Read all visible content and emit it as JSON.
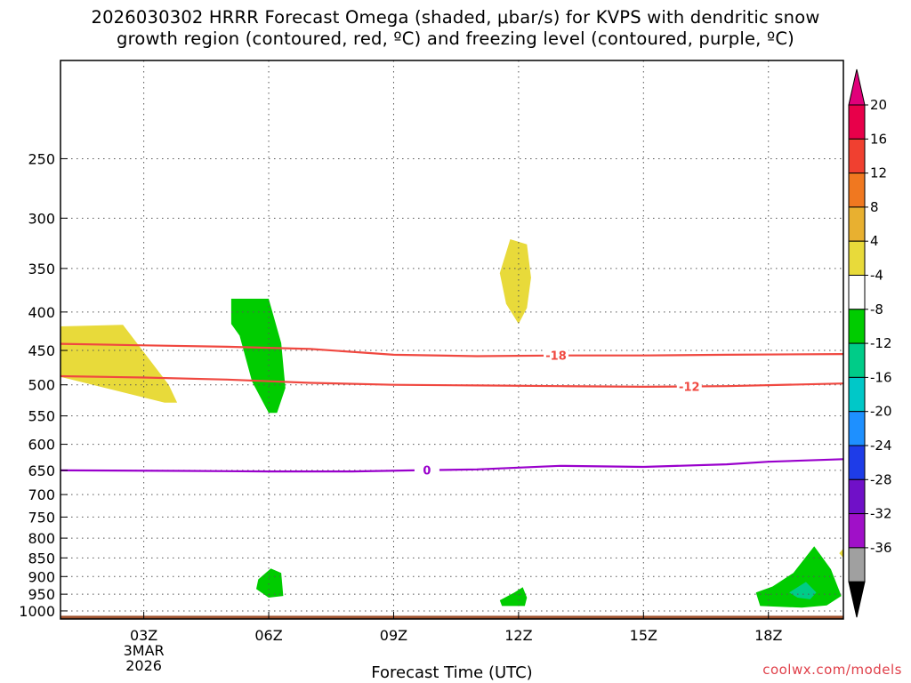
{
  "title_line1": "2026030302 HRRR Forecast Omega (shaded, μbar/s) for KVPS with dendritic snow",
  "title_line2": "growth region (contoured, red, ºC) and freezing level (contoured, purple, ºC)",
  "credit": "coolwx.com/models",
  "chart_data": {
    "type": "time-height cross-section",
    "xlabel": "Forecast Time (UTC)",
    "x_range_hours": [
      1.0,
      19.8
    ],
    "x_ticks": [
      {
        "hour": 3,
        "label": "03Z",
        "sub1": "3MAR",
        "sub2": "2026"
      },
      {
        "hour": 6,
        "label": "06Z"
      },
      {
        "hour": 9,
        "label": "09Z"
      },
      {
        "hour": 12,
        "label": "12Z"
      },
      {
        "hour": 15,
        "label": "15Z"
      },
      {
        "hour": 18,
        "label": "18Z"
      }
    ],
    "y_scale": "log pressure",
    "y_range_hpa": [
      1025,
      185
    ],
    "y_ticks": [
      250,
      300,
      350,
      400,
      450,
      500,
      550,
      600,
      650,
      700,
      750,
      800,
      850,
      900,
      950,
      1000
    ],
    "grid": true,
    "ground_hpa": 1015,
    "ground_color": "#a0522d",
    "contours": [
      {
        "name": "-18",
        "color": "#f04840",
        "label_at_hour": 12.9,
        "points": [
          [
            1.0,
            441
          ],
          [
            3,
            443
          ],
          [
            5,
            445
          ],
          [
            7,
            448
          ],
          [
            9,
            456
          ],
          [
            11,
            458
          ],
          [
            13,
            457
          ],
          [
            15,
            457
          ],
          [
            17,
            456
          ],
          [
            19.8,
            455
          ]
        ]
      },
      {
        "name": "-12",
        "color": "#f04840",
        "label_at_hour": 16.1,
        "points": [
          [
            1.0,
            487
          ],
          [
            3,
            489
          ],
          [
            5,
            492
          ],
          [
            7,
            497
          ],
          [
            9,
            500
          ],
          [
            11,
            501
          ],
          [
            13,
            502
          ],
          [
            15,
            503
          ],
          [
            17,
            502
          ],
          [
            19.8,
            498
          ]
        ]
      },
      {
        "name": "0",
        "color": "#9900cc",
        "label_at_hour": 9.8,
        "points": [
          [
            1.0,
            650
          ],
          [
            4,
            651
          ],
          [
            6,
            652
          ],
          [
            8,
            652
          ],
          [
            9.5,
            650
          ],
          [
            11,
            648
          ],
          [
            13,
            641
          ],
          [
            15,
            643
          ],
          [
            17,
            638
          ],
          [
            18,
            633
          ],
          [
            19.8,
            628
          ]
        ]
      }
    ],
    "omega_regions": [
      {
        "value_class": "4 to 8",
        "color": "#e8da3a",
        "points": [
          [
            1.0,
            418
          ],
          [
            2.5,
            416
          ],
          [
            3.6,
            500
          ],
          [
            3.8,
            528
          ],
          [
            3.5,
            528
          ],
          [
            1.0,
            488
          ]
        ]
      },
      {
        "value_class": "4 to 8",
        "color": "#e8da3a",
        "points": [
          [
            11.8,
            320
          ],
          [
            12.2,
            325
          ],
          [
            12.3,
            360
          ],
          [
            12.2,
            395
          ],
          [
            12.0,
            415
          ],
          [
            11.7,
            390
          ],
          [
            11.55,
            355
          ]
        ]
      },
      {
        "value_class": "4 to 8",
        "color": "#e8da3a",
        "points": [
          [
            19.8,
            826
          ],
          [
            19.7,
            838
          ],
          [
            19.8,
            850
          ]
        ]
      },
      {
        "value_class": "-8 to -4",
        "color": "#00cc00",
        "points": [
          [
            5.1,
            384
          ],
          [
            6.0,
            384
          ],
          [
            6.3,
            440
          ],
          [
            6.4,
            505
          ],
          [
            6.2,
            545
          ],
          [
            6.0,
            545
          ],
          [
            5.6,
            495
          ],
          [
            5.3,
            430
          ],
          [
            5.1,
            415
          ]
        ]
      },
      {
        "value_class": "-8 to -4",
        "color": "#00cc00",
        "points": [
          [
            5.75,
            908
          ],
          [
            6.05,
            878
          ],
          [
            6.3,
            890
          ],
          [
            6.35,
            955
          ],
          [
            6.0,
            960
          ],
          [
            5.7,
            935
          ]
        ]
      },
      {
        "value_class": "-8 to -4",
        "color": "#00cc00",
        "points": [
          [
            11.55,
            968
          ],
          [
            11.9,
            945
          ],
          [
            12.1,
            930
          ],
          [
            12.2,
            960
          ],
          [
            12.15,
            985
          ],
          [
            11.6,
            985
          ]
        ]
      },
      {
        "value_class": "-8 to -4",
        "color": "#00cc00",
        "points": [
          [
            17.7,
            945
          ],
          [
            18.1,
            928
          ],
          [
            18.6,
            890
          ],
          [
            19.1,
            820
          ],
          [
            19.5,
            880
          ],
          [
            19.75,
            955
          ],
          [
            19.4,
            983
          ],
          [
            18.8,
            990
          ],
          [
            17.8,
            985
          ]
        ]
      },
      {
        "value_class": "-12 to -8",
        "color": "#00cc88",
        "points": [
          [
            18.5,
            945
          ],
          [
            18.9,
            915
          ],
          [
            19.15,
            945
          ],
          [
            19.0,
            965
          ],
          [
            18.7,
            960
          ]
        ]
      }
    ]
  },
  "colorbar": {
    "labels": [
      "20",
      "16",
      "12",
      "8",
      "4",
      "-4",
      "-8",
      "-12",
      "-16",
      "-20",
      "-24",
      "-28",
      "-32",
      "-36"
    ],
    "colors": [
      "#e8004a",
      "#f04030",
      "#f07820",
      "#e8b030",
      "#e8da3a",
      "#ffffff",
      "#00cc00",
      "#00cc88",
      "#00c8c8",
      "#1e90ff",
      "#1e3ce8",
      "#7010c8",
      "#a010c8",
      "#a0a0a0"
    ],
    "top_triangle_color": "#e0007a",
    "bottom_triangle_color": "#000000"
  }
}
